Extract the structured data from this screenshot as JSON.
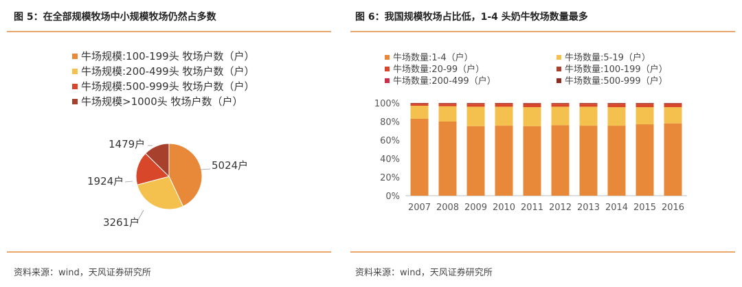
{
  "left": {
    "title": "图 5：在全部规模牧场中小规模牧场仍然占多数",
    "source": "资料来源：wind，天风证券研究所"
  },
  "right": {
    "title": "图 6：我国规模牧场占比低，1-4 头奶牛牧场数量最多",
    "source": "资料来源：wind，天风证券研究所"
  },
  "chart_data": [
    {
      "type": "pie",
      "title": "",
      "labels": [
        "牛场规模:100-199头 牧场户数（户）",
        "牛场规模:200-499头 牧场户数（户）",
        "牛场规模:500-999头 牧场户数（户）",
        "牛场规模>1000头 牧场户数（户）"
      ],
      "values": [
        5024,
        3261,
        1924,
        1479
      ],
      "value_labels": [
        "5024户",
        "3261户",
        "1924户",
        "1479户"
      ],
      "colors": [
        "#e8893a",
        "#f4c04e",
        "#d9472a",
        "#a8402e"
      ],
      "legend_position": "top"
    },
    {
      "type": "bar",
      "stacked": "percent",
      "categories": [
        "2007",
        "2008",
        "2009",
        "2010",
        "2011",
        "2012",
        "2013",
        "2014",
        "2015",
        "2016"
      ],
      "series": [
        {
          "name": "牛场数量:1-4（户）",
          "color": "#e8893a",
          "values": [
            83,
            80,
            75,
            75.5,
            75,
            76,
            75.5,
            75.5,
            77,
            78
          ]
        },
        {
          "name": "牛场数量:5-19（户）",
          "color": "#f4c04e",
          "values": [
            14,
            16.5,
            21,
            20.5,
            20.5,
            20,
            20.5,
            20,
            18.5,
            17.5
          ]
        },
        {
          "name": "牛场数量:20-99（户）",
          "color": "#d9472a",
          "values": [
            2.2,
            2.6,
            3.1,
            3.2,
            3.4,
            3.1,
            3.1,
            3.5,
            3.5,
            3.4
          ]
        },
        {
          "name": "牛场数量:100-199（户）",
          "color": "#a8402e",
          "values": [
            0.5,
            0.5,
            0.5,
            0.5,
            0.6,
            0.5,
            0.5,
            0.6,
            0.6,
            0.6
          ]
        },
        {
          "name": "牛场数量:200-499（户）",
          "color": "#c9304a",
          "values": [
            0.2,
            0.3,
            0.3,
            0.2,
            0.3,
            0.3,
            0.3,
            0.3,
            0.3,
            0.4
          ]
        },
        {
          "name": "牛场数量:500-999（户）",
          "color": "#8c2b22",
          "values": [
            0.1,
            0.1,
            0.1,
            0.1,
            0.2,
            0.1,
            0.1,
            0.1,
            0.1,
            0.1
          ]
        }
      ],
      "yticks": [
        "0%",
        "20%",
        "40%",
        "60%",
        "80%",
        "100%"
      ],
      "ylim": [
        0,
        100
      ],
      "legend_position": "top"
    }
  ]
}
